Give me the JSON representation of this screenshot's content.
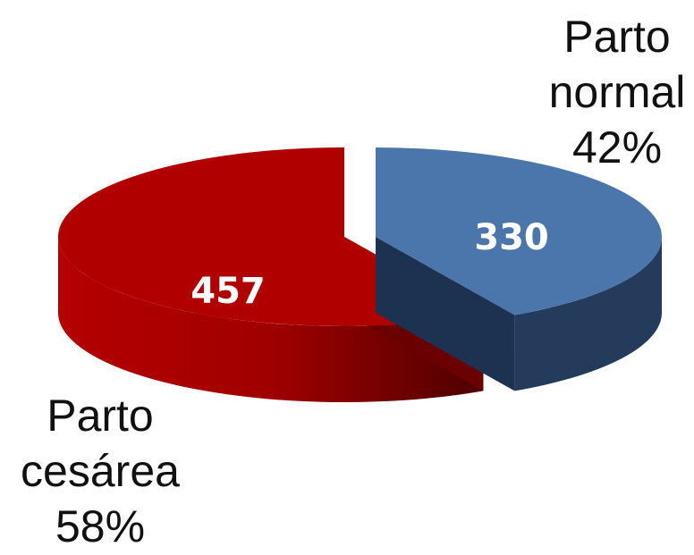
{
  "chart_data": {
    "type": "pie3d",
    "categories": [
      "Parto normal",
      "Parto cesárea"
    ],
    "values": [
      330,
      457
    ],
    "percent_labels": [
      "42%",
      "58%"
    ],
    "colors": [
      "#4a76ab",
      "#b00000"
    ]
  }
}
